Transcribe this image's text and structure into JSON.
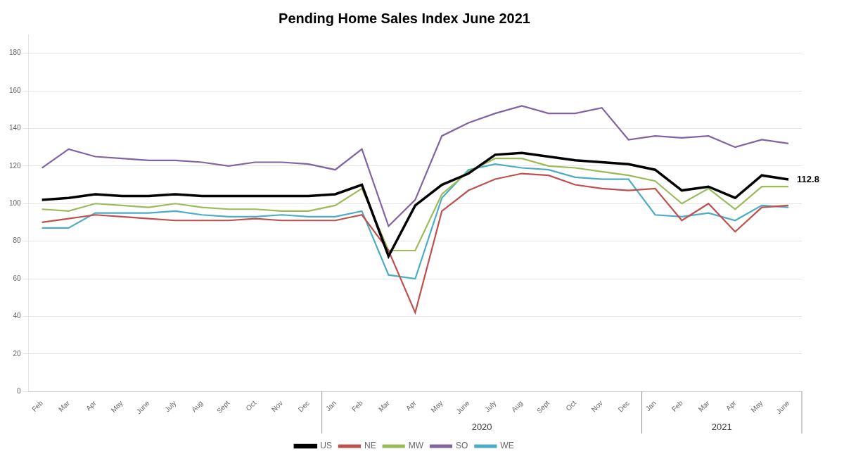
{
  "chart_data": {
    "type": "line",
    "title": "Pending Home Sales Index June 2021",
    "categories": [
      "Feb",
      "Mar",
      "Apr",
      "May",
      "June",
      "July",
      "Aug",
      "Sept",
      "Oct",
      "Nov",
      "Dec",
      "Jan",
      "Feb",
      "Mar",
      "Apr",
      "May",
      "June",
      "July",
      "Aug",
      "Sept",
      "Oct",
      "Nov",
      "Dec",
      "Jan",
      "Feb",
      "Mar",
      "Apr",
      "May",
      "June"
    ],
    "series": [
      {
        "name": "US",
        "color": "#000000",
        "values": [
          102,
          103,
          105,
          104,
          104,
          105,
          104,
          104,
          104,
          104,
          104,
          105,
          110,
          72,
          99,
          110,
          116,
          126,
          127,
          125,
          123,
          122,
          121,
          118,
          107,
          109,
          103,
          115,
          112.8
        ]
      },
      {
        "name": "NE",
        "color": "#C0504D",
        "values": [
          90,
          92,
          94,
          93,
          92,
          91,
          91,
          91,
          92,
          91,
          91,
          91,
          94,
          75,
          42,
          96,
          107,
          113,
          116,
          115,
          110,
          108,
          107,
          108,
          91,
          100,
          85,
          98,
          99
        ]
      },
      {
        "name": "MW",
        "color": "#9BBB59",
        "values": [
          97,
          96,
          100,
          99,
          98,
          100,
          98,
          97,
          97,
          96,
          96,
          99,
          108,
          75,
          75,
          105,
          117,
          124,
          124,
          120,
          119,
          117,
          115,
          112,
          100,
          108,
          97,
          109,
          109
        ]
      },
      {
        "name": "SO",
        "color": "#8064A2",
        "values": [
          119,
          129,
          125,
          124,
          123,
          123,
          122,
          120,
          122,
          122,
          121,
          118,
          129,
          88,
          102,
          136,
          143,
          148,
          152,
          148,
          148,
          151,
          134,
          136,
          135,
          136,
          130,
          134,
          132
        ]
      },
      {
        "name": "WE",
        "color": "#4BACC6",
        "values": [
          87,
          87,
          95,
          95,
          95,
          96,
          94,
          93,
          93,
          94,
          93,
          93,
          96,
          62,
          60,
          103,
          118,
          121,
          119,
          118,
          114,
          113,
          113,
          94,
          93,
          95,
          91,
          99,
          98
        ]
      }
    ],
    "ylim": [
      0,
      190
    ],
    "yticks": [
      0,
      20,
      40,
      60,
      80,
      100,
      120,
      140,
      160,
      180
    ],
    "grid": "y",
    "legend": "bottom",
    "annotations": [
      {
        "text": "112.8",
        "index": 28,
        "y": 112.8
      }
    ],
    "year_labels": [
      {
        "label": "2020",
        "range": [
          11,
          22
        ]
      },
      {
        "label": "2021",
        "range": [
          23,
          28
        ]
      }
    ]
  }
}
